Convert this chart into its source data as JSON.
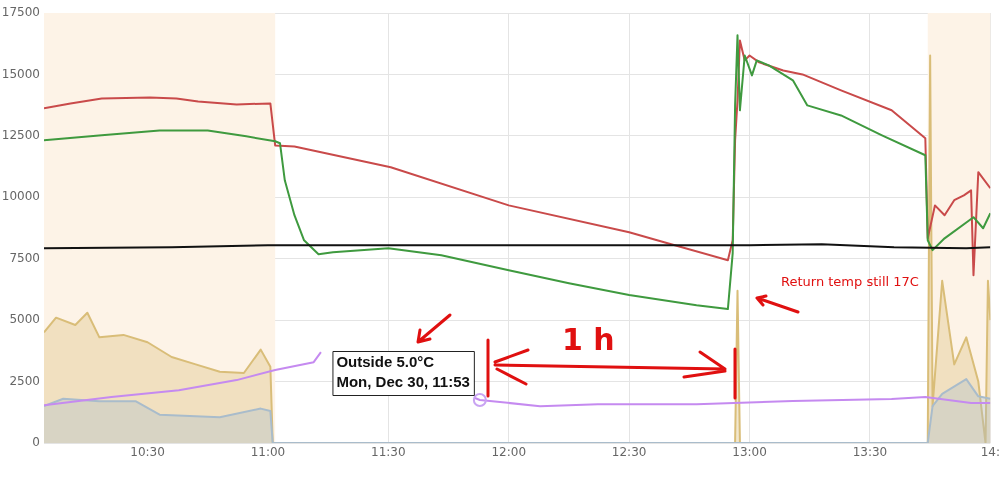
{
  "chart_data": {
    "type": "line",
    "xlim": [
      10.07,
      14.0
    ],
    "xticks": [
      {
        "value": 10.5,
        "label": "10:30"
      },
      {
        "value": 11,
        "label": "11:00"
      },
      {
        "value": 11.5,
        "label": "11:30"
      },
      {
        "value": 12,
        "label": "12:00"
      },
      {
        "value": 12.5,
        "label": "12:30"
      },
      {
        "value": 13,
        "label": "13:00"
      },
      {
        "value": 13.5,
        "label": "13:30"
      },
      {
        "value": 14,
        "label": "14:"
      }
    ],
    "ylim": [
      0,
      17500
    ],
    "yticks": [
      0,
      2500,
      5000,
      7500,
      10000,
      12500,
      15000,
      17500
    ],
    "grid": true,
    "bands": [
      {
        "axis": "x",
        "from": 10.07,
        "to": 11.03,
        "color": "#fdf3e7"
      },
      {
        "axis": "x",
        "from": 13.74,
        "to": 14.0,
        "color": "#fdf3e7"
      }
    ],
    "series": [
      {
        "type": "area",
        "color": "#d9bd78",
        "x": [
          10.07,
          10.12,
          10.2,
          10.25,
          10.3,
          10.4,
          10.5,
          10.6,
          10.7,
          10.8,
          10.9,
          10.97,
          11.01,
          11.02,
          12.94,
          12.95,
          12.96,
          13.74,
          13.75,
          13.76,
          13.8,
          13.85,
          13.9,
          13.95,
          13.98,
          13.99,
          14.0
        ],
        "values": [
          4500,
          5100,
          4800,
          5300,
          4300,
          4400,
          4100,
          3500,
          3200,
          2900,
          2850,
          3800,
          3100,
          0,
          0,
          6200,
          0,
          0,
          15770,
          1500,
          6600,
          3200,
          4300,
          2500,
          0,
          6600,
          5000
        ]
      },
      {
        "type": "area",
        "color": "#a9bccb",
        "x": [
          10.07,
          10.15,
          10.3,
          10.45,
          10.55,
          10.8,
          10.97,
          11.01,
          11.02,
          13.74,
          13.76,
          13.8,
          13.9,
          13.95,
          14.0
        ],
        "values": [
          1500,
          1800,
          1700,
          1700,
          1150,
          1050,
          1400,
          1300,
          0,
          0,
          1500,
          2000,
          2600,
          1900,
          1800
        ]
      },
      {
        "color": "#c94a4a",
        "x": [
          10.07,
          10.18,
          10.31,
          10.51,
          10.62,
          10.71,
          10.87,
          11.01,
          11.03,
          11.11,
          11.51,
          12.0,
          12.5,
          12.66,
          12.91,
          12.93,
          12.94,
          12.95,
          12.96,
          12.98,
          13.0,
          13.04,
          13.14,
          13.22,
          13.38,
          13.59,
          13.73,
          13.74,
          13.77,
          13.81,
          13.85,
          13.89,
          13.92,
          13.93,
          13.95,
          14.0
        ],
        "values": [
          13620,
          13820,
          14020,
          14060,
          14020,
          13900,
          13780,
          13820,
          12110,
          12070,
          11220,
          9670,
          8580,
          8130,
          7440,
          8250,
          12320,
          13940,
          16380,
          15570,
          15770,
          15490,
          15160,
          15000,
          14350,
          13540,
          12400,
          8330,
          9670,
          9270,
          9880,
          10080,
          10280,
          6830,
          11020,
          10370
        ]
      },
      {
        "color": "#3f9a3f",
        "x": [
          10.07,
          10.31,
          10.55,
          10.75,
          10.91,
          11.03,
          11.05,
          11.07,
          11.11,
          11.15,
          11.21,
          11.27,
          11.5,
          11.72,
          12.0,
          12.25,
          12.5,
          12.78,
          12.91,
          12.93,
          12.94,
          12.95,
          12.96,
          12.98,
          13.01,
          13.03,
          13.08,
          13.18,
          13.24,
          13.38,
          13.55,
          13.73,
          13.74,
          13.76,
          13.81,
          13.93,
          13.97,
          14.0
        ],
        "values": [
          12320,
          12520,
          12720,
          12720,
          12480,
          12280,
          12200,
          10690,
          9270,
          8250,
          7680,
          7760,
          7930,
          7640,
          7030,
          6500,
          6020,
          5610,
          5450,
          7720,
          13740,
          16590,
          13540,
          15770,
          14960,
          15570,
          15370,
          14760,
          13740,
          13330,
          12520,
          11710,
          8250,
          7850,
          8330,
          9190,
          8740,
          9350
        ]
      },
      {
        "color": "#111111",
        "x": [
          10.07,
          10.6,
          11.0,
          12.0,
          13.0,
          13.3,
          13.6,
          13.9,
          14.0
        ],
        "values": [
          7930,
          7970,
          8050,
          8050,
          8050,
          8090,
          7970,
          7930,
          7970
        ]
      },
      {
        "color": "#c58af0",
        "x": [
          10.07,
          10.35,
          10.63,
          10.87,
          11.03,
          11.19,
          11.22,
          11.5,
          11.86,
          11.88,
          12.13,
          12.37,
          12.78,
          13.18,
          13.59,
          13.73,
          13.92,
          14.0
        ],
        "values": [
          1540,
          1870,
          2150,
          2560,
          2970,
          3290,
          3700,
          null,
          1830,
          1750,
          1500,
          1580,
          1580,
          1710,
          1790,
          1870,
          1630,
          1630
        ]
      }
    ],
    "annotations": [
      {
        "text": "Outside 5.0°C\nMon, Dec 30, 11:53",
        "x": 11.88,
        "y": 1750
      },
      "1 h",
      "Return temp still 17C"
    ]
  }
}
